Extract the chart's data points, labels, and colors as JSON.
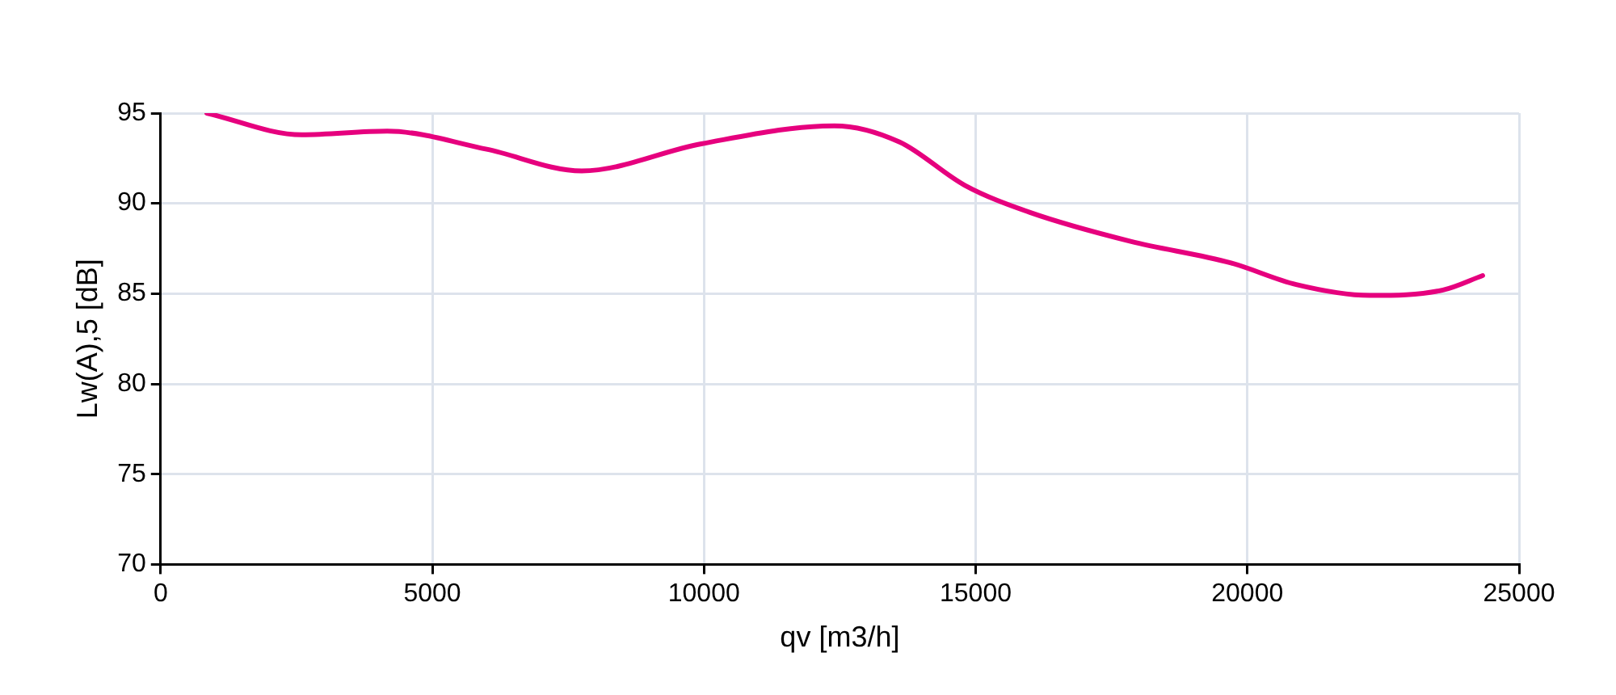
{
  "chart_data": {
    "type": "line",
    "xlabel": "qv [m3/h]",
    "ylabel": "Lw(A),5 [dB]",
    "x": [
      850,
      2600,
      4170,
      6000,
      7750,
      9950,
      12400,
      13600,
      14800,
      16000,
      17850,
      19700,
      20900,
      22250,
      23600,
      24330
    ],
    "series": [
      {
        "color": "#e6007e",
        "values": [
          95.0,
          93.8,
          94.0,
          93.0,
          91.8,
          93.3,
          94.3,
          93.4,
          91.0,
          89.5,
          87.9,
          86.7,
          85.5,
          84.9,
          85.2,
          86.0
        ]
      }
    ],
    "xlim": [
      0,
      25000
    ],
    "xticks": [
      0,
      5000,
      10000,
      15000,
      20000,
      25000
    ],
    "ylim": [
      70,
      95
    ],
    "yticks": [
      70,
      75,
      80,
      85,
      90,
      95
    ],
    "grid": true,
    "legend": false,
    "marker": "none",
    "line_style": "solid"
  }
}
